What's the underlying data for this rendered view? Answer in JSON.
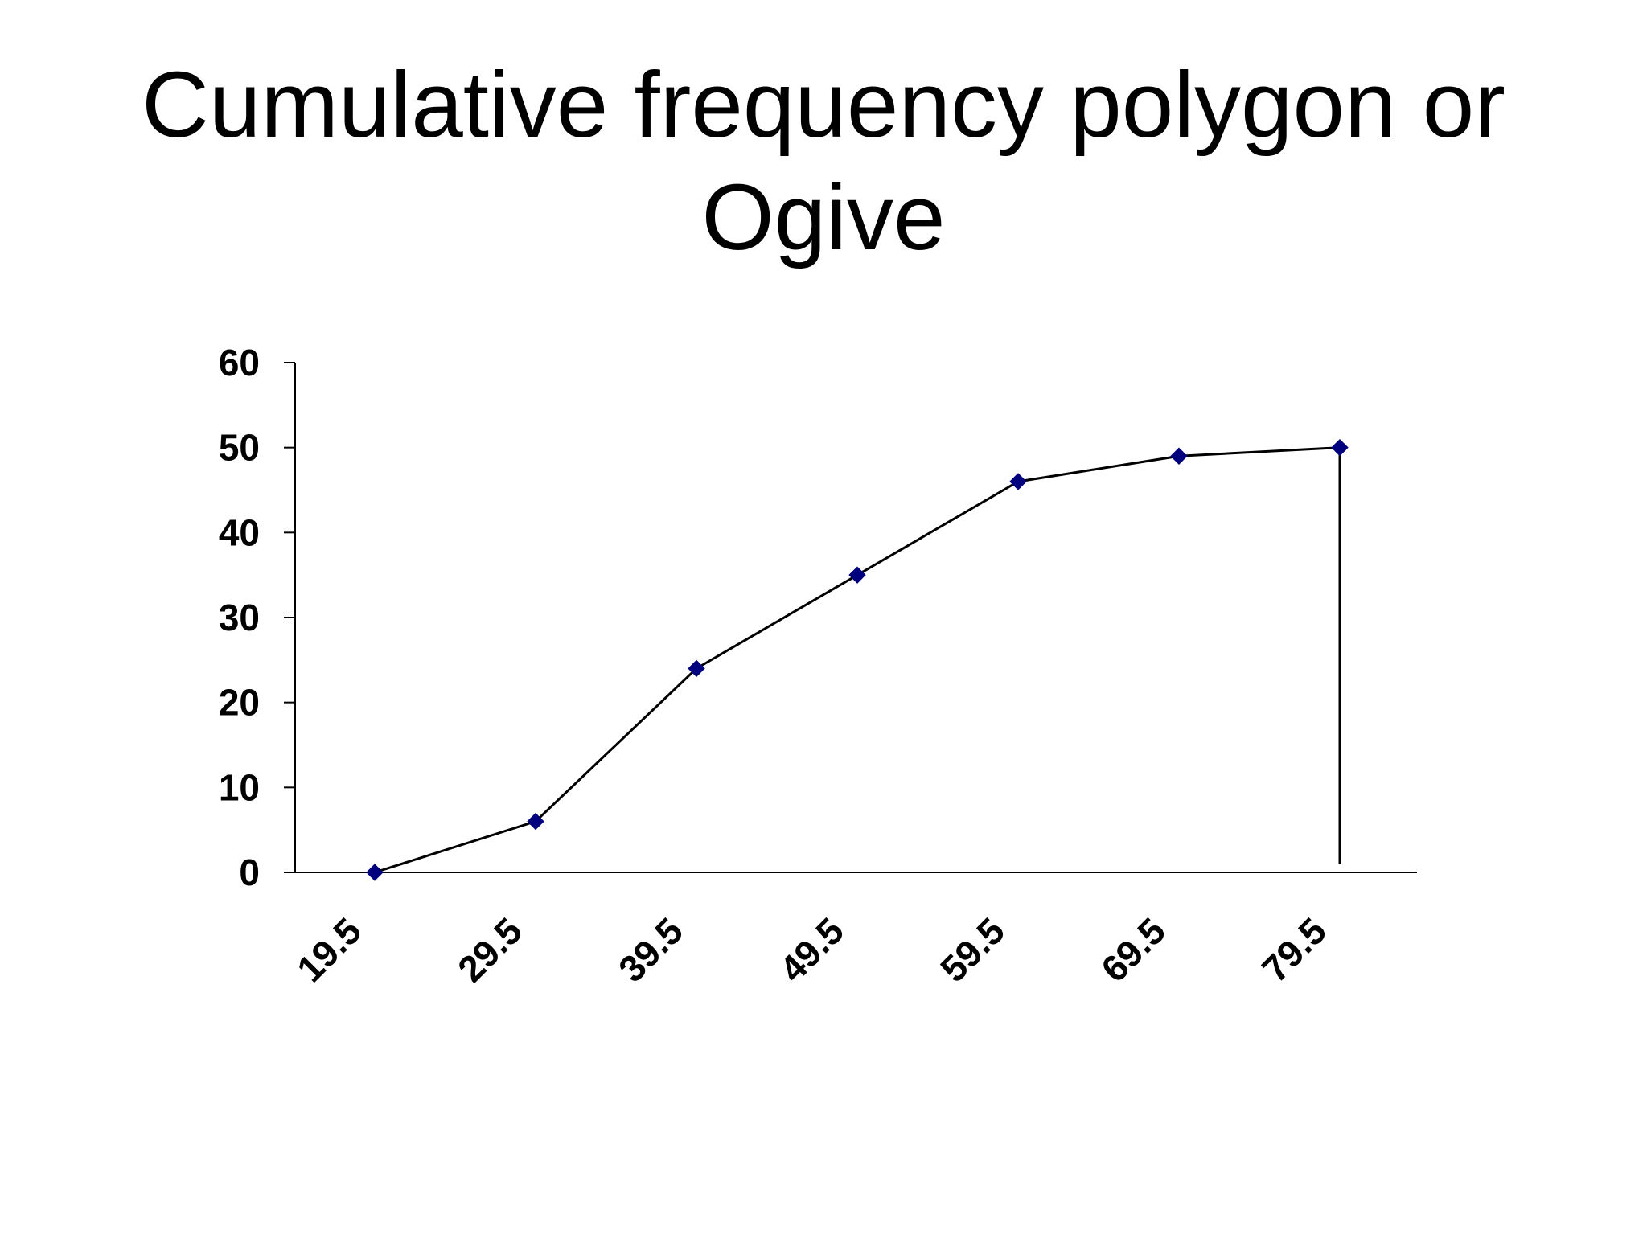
{
  "slide": {
    "title_line1": "Cumulative frequency polygon or",
    "title_line2": "Ogive"
  },
  "chart_data": {
    "type": "line",
    "title": "Cumulative frequency polygon or Ogive",
    "xlabel": "",
    "ylabel": "",
    "categories": [
      "19.5",
      "29.5",
      "39.5",
      "49.5",
      "59.5",
      "69.5",
      "79.5"
    ],
    "series": [
      {
        "values": [
          0,
          6,
          24,
          35,
          46,
          49,
          50
        ],
        "color": "#000000",
        "marker": "diamond",
        "marker_color": "#00007f"
      }
    ],
    "ylim": [
      0,
      60
    ],
    "yticks": [
      0,
      10,
      20,
      30,
      40,
      50,
      60
    ],
    "grid": false,
    "legend": "none",
    "drop_line_at_last_point": true
  }
}
